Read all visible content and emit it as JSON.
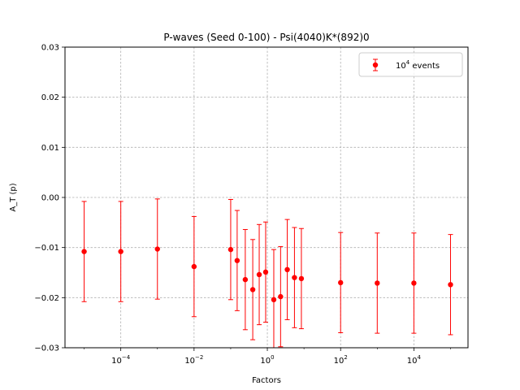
{
  "chart_data": {
    "type": "scatter",
    "title": "P-waves (Seed 0-100) - Psi(4040)K*(892)0",
    "xlabel": "Factors",
    "ylabel": "A_T (p)",
    "xscale": "log",
    "xlim": [
      3e-06,
      300000.0
    ],
    "ylim": [
      -0.03,
      0.03
    ],
    "grid": true,
    "legend_position": "top-right",
    "color": "#ff0000",
    "x_ticks": [
      {
        "value": 0.0001,
        "base": "10",
        "exp": "−4"
      },
      {
        "value": 0.01,
        "base": "10",
        "exp": "−2"
      },
      {
        "value": 1,
        "base": "10",
        "exp": "0"
      },
      {
        "value": 100,
        "base": "10",
        "exp": "2"
      },
      {
        "value": 10000,
        "base": "10",
        "exp": "4"
      }
    ],
    "y_ticks": [
      {
        "value": 0.03,
        "label": "0.03"
      },
      {
        "value": 0.02,
        "label": "0.02"
      },
      {
        "value": 0.01,
        "label": "0.01"
      },
      {
        "value": 0.0,
        "label": "0.00"
      },
      {
        "value": -0.01,
        "label": "−0.01"
      },
      {
        "value": -0.02,
        "label": "−0.02"
      },
      {
        "value": -0.03,
        "label": "−0.03"
      }
    ],
    "series": [
      {
        "name": "10^4 events",
        "legend_base": "10",
        "legend_exp": "4",
        "legend_suffix": " events",
        "points": [
          {
            "x": 1e-05,
            "y": -0.0108,
            "err": 0.01
          },
          {
            "x": 0.0001,
            "y": -0.0108,
            "err": 0.01
          },
          {
            "x": 0.001,
            "y": -0.0103,
            "err": 0.01
          },
          {
            "x": 0.01,
            "y": -0.0138,
            "err": 0.01
          },
          {
            "x": 0.1,
            "y": -0.0104,
            "err": 0.01
          },
          {
            "x": 0.15,
            "y": -0.0126,
            "err": 0.01
          },
          {
            "x": 0.25,
            "y": -0.0164,
            "err": 0.01
          },
          {
            "x": 0.4,
            "y": -0.0184,
            "err": 0.01
          },
          {
            "x": 0.6,
            "y": -0.0154,
            "err": 0.01
          },
          {
            "x": 0.9,
            "y": -0.0149,
            "err": 0.01
          },
          {
            "x": 1.5,
            "y": -0.0204,
            "err": 0.01
          },
          {
            "x": 2.3,
            "y": -0.0198,
            "err": 0.01
          },
          {
            "x": 3.5,
            "y": -0.0144,
            "err": 0.01
          },
          {
            "x": 5.5,
            "y": -0.016,
            "err": 0.01
          },
          {
            "x": 8.5,
            "y": -0.0162,
            "err": 0.01
          },
          {
            "x": 100,
            "y": -0.017,
            "err": 0.01
          },
          {
            "x": 1000,
            "y": -0.0171,
            "err": 0.01
          },
          {
            "x": 10000,
            "y": -0.0171,
            "err": 0.01
          },
          {
            "x": 100000,
            "y": -0.0174,
            "err": 0.01
          }
        ]
      }
    ]
  }
}
